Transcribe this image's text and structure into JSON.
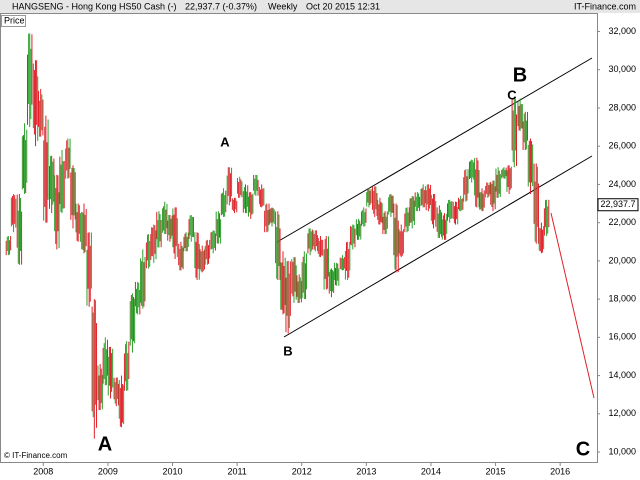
{
  "chart_data": {
    "type": "hl_bars",
    "title": "HANGSENG - Hong Kong HS50 Cash (-)",
    "quote": "22,937.7 (-0.37%)",
    "period": "Weekly",
    "timestamp": "Oct 20 2015 12:31",
    "brand": "IT-Finance.com",
    "footer": "© IT-Finance.com",
    "panel_label": "Price",
    "last_value": {
      "value": 22937.7,
      "label": "22,937.7"
    },
    "annotations": [
      "A",
      "A",
      "B",
      "B",
      "C",
      "C"
    ],
    "up_color": "#2ca02c",
    "down_color": "#e0202a",
    "xlim": [
      2007.33,
      2016.57
    ],
    "xticks": [
      2008,
      2009,
      2010,
      2011,
      2012,
      2013,
      2014,
      2015,
      2016
    ],
    "ylim": [
      9480,
      32340
    ],
    "yticks": [
      {
        "value": 10000,
        "label": "10,000"
      },
      {
        "value": 12000,
        "label": "12,000"
      },
      {
        "value": 14000,
        "label": "14,000"
      },
      {
        "value": 16000,
        "label": "16,000"
      },
      {
        "value": 18000,
        "label": "18,000"
      },
      {
        "value": 20000,
        "label": "20,000"
      },
      {
        "value": 22000,
        "label": "22,000"
      },
      {
        "value": 24000,
        "label": "24,000"
      },
      {
        "value": 26000,
        "label": "26,000"
      },
      {
        "value": 28000,
        "label": "28,000"
      },
      {
        "value": 30000,
        "label": "30,000"
      },
      {
        "value": 32000,
        "label": "32,000"
      }
    ],
    "grid": false,
    "x": [
      2007.46,
      2007.54,
      2007.63,
      2007.71,
      2007.79,
      2007.88,
      2007.96,
      2008.04,
      2008.13,
      2008.21,
      2008.29,
      2008.38,
      2008.46,
      2008.54,
      2008.63,
      2008.71,
      2008.79,
      2008.88,
      2008.96,
      2009.04,
      2009.13,
      2009.21,
      2009.29,
      2009.38,
      2009.46,
      2009.54,
      2009.63,
      2009.71,
      2009.79,
      2009.88,
      2009.96,
      2010.04,
      2010.13,
      2010.21,
      2010.29,
      2010.38,
      2010.46,
      2010.54,
      2010.63,
      2010.71,
      2010.79,
      2010.88,
      2010.96,
      2011.04,
      2011.13,
      2011.21,
      2011.29,
      2011.38,
      2011.46,
      2011.54,
      2011.63,
      2011.71,
      2011.79,
      2011.88,
      2011.96,
      2012.04,
      2012.13,
      2012.21,
      2012.29,
      2012.38,
      2012.46,
      2012.54,
      2012.63,
      2012.71,
      2012.79,
      2012.88,
      2012.96,
      2013.04,
      2013.13,
      2013.21,
      2013.29,
      2013.38,
      2013.46,
      2013.54,
      2013.63,
      2013.71,
      2013.79,
      2013.88,
      2013.96,
      2014.04,
      2014.13,
      2014.21,
      2014.29,
      2014.38,
      2014.46,
      2014.54,
      2014.63,
      2014.71,
      2014.79,
      2014.88,
      2014.96,
      2015.04,
      2015.13,
      2015.21,
      2015.29,
      2015.38,
      2015.46,
      2015.54,
      2015.63,
      2015.71,
      2015.79
    ],
    "high": [
      21300,
      23500,
      23500,
      27200,
      31900,
      30500,
      29000,
      27600,
      25500,
      24500,
      25800,
      26400,
      25000,
      23000,
      23000,
      21500,
      18000,
      14600,
      16000,
      15500,
      13900,
      14000,
      15800,
      18300,
      18900,
      20600,
      21400,
      21900,
      22600,
      23100,
      22400,
      22800,
      21000,
      21500,
      22400,
      21500,
      20800,
      21100,
      21600,
      22600,
      23800,
      24900,
      23300,
      24400,
      24000,
      23600,
      24500,
      24000,
      23000,
      22800,
      22600,
      20500,
      20000,
      20200,
      19300,
      20500,
      21700,
      21600,
      21300,
      21300,
      19600,
      19900,
      20300,
      21000,
      21900,
      22200,
      22800,
      23800,
      23900,
      23300,
      22600,
      23500,
      23000,
      21900,
      22800,
      23400,
      23600,
      24000,
      24000,
      23500,
      22900,
      22500,
      23200,
      23100,
      23400,
      24800,
      25300,
      25400,
      23800,
      24100,
      24200,
      24900,
      24900,
      25000,
      28500,
      28500,
      27800,
      26400,
      25100,
      22000,
      23200
    ],
    "low": [
      20300,
      21500,
      19800,
      23500,
      27000,
      26000,
      26500,
      22000,
      22500,
      20600,
      22500,
      24300,
      21700,
      21000,
      20400,
      17600,
      10700,
      12200,
      13500,
      12800,
      12400,
      11300,
      13200,
      15200,
      17200,
      17500,
      19600,
      19900,
      20700,
      21400,
      21000,
      20100,
      19500,
      20500,
      21000,
      19000,
      19400,
      19800,
      20400,
      20900,
      22300,
      22900,
      22500,
      23300,
      22500,
      22200,
      23400,
      22800,
      21500,
      21800,
      19000,
      17200,
      16200,
      17800,
      17800,
      18000,
      20300,
      20500,
      20200,
      18500,
      18100,
      18700,
      19500,
      19000,
      20600,
      21100,
      21800,
      22800,
      22300,
      21900,
      21400,
      22300,
      19400,
      20200,
      21500,
      21700,
      22600,
      22800,
      22600,
      21700,
      21200,
      21100,
      22000,
      21900,
      22600,
      23100,
      24100,
      22800,
      22600,
      23300,
      22600,
      23300,
      24300,
      23500,
      24900,
      26800,
      25800,
      23500,
      20900,
      20400,
      21300
    ]
  }
}
